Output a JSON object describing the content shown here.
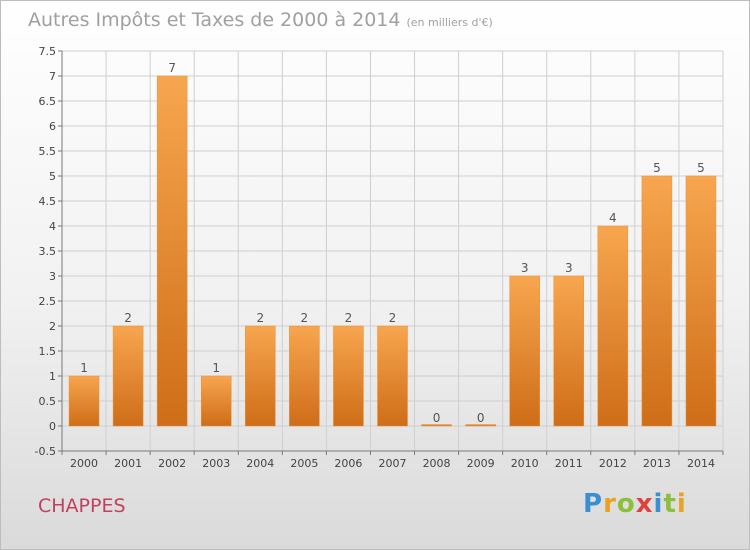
{
  "title": "Autres Impôts et Taxes de 2000 à 2014",
  "subtitle": "(en milliers d'€)",
  "city": "CHAPPES",
  "logo": {
    "letters": [
      "P",
      "r",
      "o",
      "x",
      "i",
      "t",
      "i"
    ],
    "colors": [
      "#3a8fd0",
      "#e8a325",
      "#8cbf3b",
      "#e0413a",
      "#3a8fd0",
      "#8cbf3b",
      "#e8a325"
    ]
  },
  "colors": {
    "bar_top": "#f7a64f",
    "bar_bottom": "#cf6d18",
    "grid": "#cfcfcf",
    "axis": "#7a7a7a"
  },
  "chart_data": {
    "type": "bar",
    "title": "Autres Impôts et Taxes de 2000 à 2014",
    "subtitle": "(en milliers d'€)",
    "categories": [
      "2000",
      "2001",
      "2002",
      "2003",
      "2004",
      "2005",
      "2006",
      "2007",
      "2008",
      "2009",
      "2010",
      "2011",
      "2012",
      "2013",
      "2014"
    ],
    "values": [
      1,
      2,
      7,
      1,
      2,
      2,
      2,
      2,
      0,
      0,
      3,
      3,
      4,
      5,
      5
    ],
    "data_labels": [
      "1",
      "2",
      "7",
      "1",
      "2",
      "2",
      "2",
      "2",
      "0",
      "0",
      "3",
      "3",
      "4",
      "5",
      "5"
    ],
    "ylim": [
      -0.5,
      7.5
    ],
    "yticks": [
      -0.5,
      0,
      0.5,
      1,
      1.5,
      2,
      2.5,
      3,
      3.5,
      4,
      4.5,
      5,
      5.5,
      6,
      6.5,
      7,
      7.5
    ],
    "ytick_labels": [
      "-0.5",
      "0",
      "0.5",
      "1",
      "1.5",
      "2",
      "2.5",
      "3",
      "3.5",
      "4",
      "4.5",
      "5",
      "5.5",
      "6",
      "6.5",
      "7",
      "7.5"
    ],
    "grid": true,
    "xlabel": "",
    "ylabel": ""
  }
}
